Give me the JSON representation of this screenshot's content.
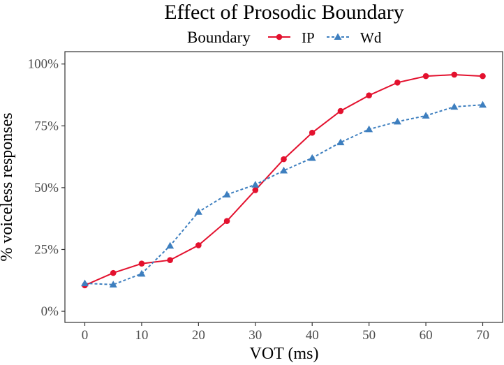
{
  "chart_data": {
    "type": "line",
    "title": "Effect of Prosodic Boundary",
    "xlabel": "VOT (ms)",
    "ylabel": "% voiceless responses",
    "legend_title": "Boundary",
    "legend_position": "top",
    "grid": false,
    "xlim": [
      -3.5,
      73.5
    ],
    "ylim": [
      -0.045,
      1.05
    ],
    "x_ticks": [
      0,
      10,
      20,
      30,
      40,
      50,
      60,
      70
    ],
    "x_tick_labels": [
      "0",
      "10",
      "20",
      "30",
      "40",
      "50",
      "60",
      "70"
    ],
    "y_ticks": [
      0,
      0.25,
      0.5,
      0.75,
      1.0
    ],
    "y_tick_labels": [
      "0%",
      "25%",
      "50%",
      "75%",
      "100%"
    ],
    "x": [
      0,
      5,
      10,
      15,
      20,
      25,
      30,
      35,
      40,
      45,
      50,
      55,
      60,
      65,
      70
    ],
    "series": [
      {
        "name": "IP",
        "color": "#e3112e",
        "marker": "circle",
        "line": "solid",
        "values": [
          0.105,
          0.155,
          0.193,
          0.207,
          0.267,
          0.365,
          0.49,
          0.615,
          0.722,
          0.81,
          0.873,
          0.925,
          0.951,
          0.957,
          0.951
        ]
      },
      {
        "name": "Wd",
        "color": "#3e7fbf",
        "marker": "triangle",
        "line": "dashed",
        "values": [
          0.113,
          0.108,
          0.152,
          0.265,
          0.402,
          0.472,
          0.512,
          0.569,
          0.62,
          0.683,
          0.736,
          0.767,
          0.791,
          0.827,
          0.835
        ]
      }
    ]
  }
}
